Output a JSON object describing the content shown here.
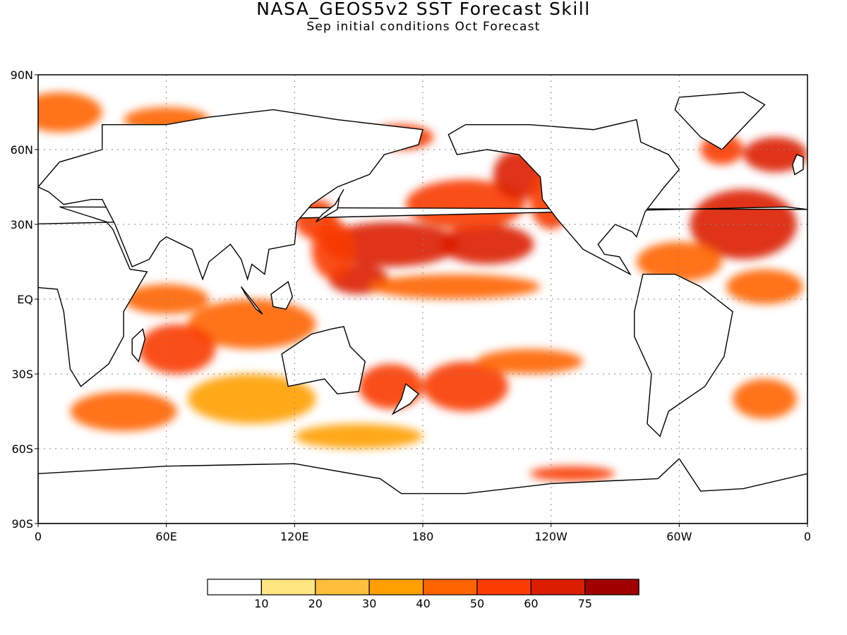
{
  "title": "NASA_GEOS5v2  SST  Forecast  Skill",
  "subtitle": "Sep  initial  conditions   Oct  Forecast",
  "axes": {
    "lat_ticks": [
      {
        "label": "90N",
        "lat": 90
      },
      {
        "label": "60N",
        "lat": 60
      },
      {
        "label": "30N",
        "lat": 30
      },
      {
        "label": "EQ",
        "lat": 0
      },
      {
        "label": "30S",
        "lat": -30
      },
      {
        "label": "60S",
        "lat": -60
      },
      {
        "label": "90S",
        "lat": -90
      }
    ],
    "lon_ticks": [
      {
        "label": "0",
        "lon": 0
      },
      {
        "label": "60E",
        "lon": 60
      },
      {
        "label": "120E",
        "lon": 120
      },
      {
        "label": "180",
        "lon": 180
      },
      {
        "label": "120W",
        "lon": 240
      },
      {
        "label": "60W",
        "lon": 300
      },
      {
        "label": "0",
        "lon": 360
      }
    ],
    "lon_range": [
      0,
      360
    ],
    "lat_range": [
      -90,
      90
    ],
    "grid": true
  },
  "colorbar": {
    "colors": [
      "#ffffff",
      "#ffe680",
      "#ffbe3c",
      "#ffa000",
      "#ff6400",
      "#fa3c00",
      "#dc1e00",
      "#a00000"
    ],
    "labels": [
      "10",
      "20",
      "30",
      "40",
      "50",
      "60",
      "75"
    ]
  },
  "skill_regions": [
    {
      "lon": 165,
      "lat": 22,
      "rx": 32,
      "ry": 9,
      "level": 6
    },
    {
      "lon": 210,
      "lat": 22,
      "rx": 22,
      "ry": 8,
      "level": 6
    },
    {
      "lon": 200,
      "lat": 38,
      "rx": 28,
      "ry": 10,
      "level": 5
    },
    {
      "lon": 225,
      "lat": 50,
      "rx": 12,
      "ry": 10,
      "level": 6
    },
    {
      "lon": 240,
      "lat": 40,
      "rx": 10,
      "ry": 12,
      "level": 5
    },
    {
      "lon": 150,
      "lat": 8,
      "rx": 14,
      "ry": 6,
      "level": 6
    },
    {
      "lon": 138,
      "lat": 20,
      "rx": 10,
      "ry": 12,
      "level": 5
    },
    {
      "lon": 130,
      "lat": 32,
      "rx": 10,
      "ry": 8,
      "level": 5
    },
    {
      "lon": 195,
      "lat": 5,
      "rx": 40,
      "ry": 5,
      "level": 4
    },
    {
      "lon": 330,
      "lat": 30,
      "rx": 25,
      "ry": 14,
      "level": 6
    },
    {
      "lon": 345,
      "lat": 58,
      "rx": 15,
      "ry": 7,
      "level": 6
    },
    {
      "lon": 320,
      "lat": 60,
      "rx": 10,
      "ry": 6,
      "level": 5
    },
    {
      "lon": 300,
      "lat": 15,
      "rx": 20,
      "ry": 8,
      "level": 4
    },
    {
      "lon": 340,
      "lat": 5,
      "rx": 18,
      "ry": 7,
      "level": 4
    },
    {
      "lon": 100,
      "lat": -10,
      "rx": 30,
      "ry": 10,
      "level": 4
    },
    {
      "lon": 65,
      "lat": -20,
      "rx": 18,
      "ry": 10,
      "level": 5
    },
    {
      "lon": 60,
      "lat": 0,
      "rx": 20,
      "ry": 6,
      "level": 4
    },
    {
      "lon": 165,
      "lat": -35,
      "rx": 15,
      "ry": 9,
      "level": 5
    },
    {
      "lon": 200,
      "lat": -35,
      "rx": 20,
      "ry": 10,
      "level": 5
    },
    {
      "lon": 230,
      "lat": -25,
      "rx": 25,
      "ry": 5,
      "level": 4
    },
    {
      "lon": 100,
      "lat": -40,
      "rx": 30,
      "ry": 10,
      "level": 3
    },
    {
      "lon": 40,
      "lat": -45,
      "rx": 25,
      "ry": 8,
      "level": 4
    },
    {
      "lon": 340,
      "lat": -40,
      "rx": 15,
      "ry": 8,
      "level": 4
    },
    {
      "lon": 150,
      "lat": -55,
      "rx": 30,
      "ry": 5,
      "level": 3
    },
    {
      "lon": 10,
      "lat": 75,
      "rx": 20,
      "ry": 8,
      "level": 4
    },
    {
      "lon": 60,
      "lat": 72,
      "rx": 20,
      "ry": 5,
      "level": 4
    },
    {
      "lon": 170,
      "lat": 65,
      "rx": 15,
      "ry": 5,
      "level": 5
    },
    {
      "lon": 250,
      "lat": -70,
      "rx": 20,
      "ry": 3,
      "level": 5
    }
  ]
}
